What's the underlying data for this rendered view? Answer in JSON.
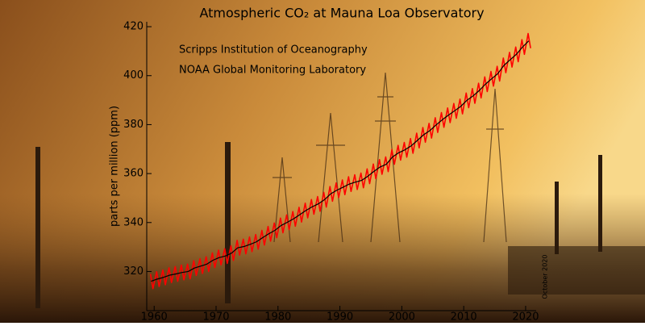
{
  "chart_data": {
    "type": "line",
    "title": "Atmospheric CO₂ at Mauna Loa Observatory",
    "annotations": [
      "Scripps Institution of Oceanography",
      "NOAA Global Monitoring Laboratory",
      "October 2020"
    ],
    "y_label": "parts per million (ppm)",
    "xlim": [
      1958.8,
      2021.7
    ],
    "ylim": [
      304,
      422
    ],
    "xticks": [
      1960,
      1970,
      1980,
      1990,
      2000,
      2010,
      2020
    ],
    "yticks": [
      320,
      340,
      360,
      380,
      400,
      420
    ],
    "series": [
      {
        "color": "#ff0000",
        "x": [
          1959.4,
          1959.8,
          1960.4,
          1960.8,
          1961.4,
          1961.8,
          1962.4,
          1962.8,
          1963.4,
          1963.8,
          1964.4,
          1964.8,
          1965.4,
          1965.8,
          1966.4,
          1966.8,
          1967.4,
          1967.8,
          1968.4,
          1968.8,
          1969.4,
          1969.8,
          1970.4,
          1970.8,
          1971.4,
          1971.8,
          1972.4,
          1972.8,
          1973.4,
          1973.8,
          1974.4,
          1974.8,
          1975.4,
          1975.8,
          1976.4,
          1976.8,
          1977.4,
          1977.8,
          1978.4,
          1978.8,
          1979.4,
          1979.8,
          1980.4,
          1980.8,
          1981.4,
          1981.8,
          1982.4,
          1982.8,
          1983.4,
          1983.8,
          1984.4,
          1984.8,
          1985.4,
          1985.8,
          1986.4,
          1986.8,
          1987.4,
          1987.8,
          1988.4,
          1988.8,
          1989.4,
          1989.8,
          1990.4,
          1990.8,
          1991.4,
          1991.8,
          1992.4,
          1992.8,
          1993.4,
          1993.8,
          1994.4,
          1994.8,
          1995.4,
          1995.8,
          1996.4,
          1996.8,
          1997.4,
          1997.8,
          1998.4,
          1998.8,
          1999.4,
          1999.8,
          2000.4,
          2000.8,
          2001.4,
          2001.8,
          2002.4,
          2002.8,
          2003.4,
          2003.8,
          2004.4,
          2004.8,
          2005.4,
          2005.8,
          2006.4,
          2006.8,
          2007.4,
          2007.8,
          2008.4,
          2008.8,
          2009.4,
          2009.8,
          2010.4,
          2010.8,
          2011.4,
          2011.8,
          2012.4,
          2012.8,
          2013.4,
          2013.8,
          2014.4,
          2014.8,
          2015.4,
          2015.8,
          2016.4,
          2016.8,
          2017.4,
          2017.8,
          2018.4,
          2018.8,
          2019.4,
          2019.8,
          2020.4,
          2020.8
        ],
        "values": [
          319.0,
          313.0,
          319.9,
          313.9,
          320.6,
          314.6,
          321.5,
          315.5,
          322.0,
          316.0,
          322.6,
          316.6,
          323.0,
          317.0,
          324.4,
          318.4,
          325.2,
          319.2,
          326.0,
          320.0,
          327.6,
          321.6,
          328.7,
          322.7,
          329.3,
          323.3,
          330.5,
          324.5,
          332.7,
          326.7,
          333.2,
          327.2,
          334.1,
          328.1,
          335.1,
          329.1,
          336.8,
          330.8,
          338.4,
          332.4,
          339.8,
          333.8,
          341.8,
          335.8,
          343.1,
          337.1,
          344.5,
          338.5,
          346.2,
          340.2,
          347.9,
          341.9,
          349.4,
          343.4,
          350.6,
          344.6,
          352.3,
          346.3,
          354.7,
          348.7,
          356.2,
          350.2,
          357.4,
          351.4,
          358.7,
          352.7,
          359.5,
          353.5,
          360.2,
          354.2,
          361.9,
          355.9,
          363.9,
          357.9,
          365.7,
          359.7,
          366.8,
          360.8,
          369.8,
          363.8,
          371.5,
          365.5,
          372.7,
          366.7,
          374.3,
          368.3,
          376.5,
          370.5,
          378.8,
          372.8,
          380.5,
          374.5,
          382.8,
          376.8,
          384.9,
          378.9,
          386.8,
          380.8,
          388.6,
          382.6,
          390.4,
          384.4,
          392.9,
          386.9,
          394.7,
          388.7,
          396.9,
          390.9,
          399.5,
          393.5,
          401.7,
          395.7,
          403.8,
          397.8,
          407.2,
          401.2,
          409.5,
          403.5,
          411.7,
          405.7,
          414.7,
          408.7,
          417.2,
          411.2
        ]
      },
      {
        "color": "#000000",
        "x": [
          1959.5,
          1960.5,
          1961.5,
          1962.5,
          1963.5,
          1964.5,
          1965.5,
          1966.5,
          1967.5,
          1968.5,
          1969.5,
          1970.5,
          1971.5,
          1972.5,
          1973.5,
          1974.5,
          1975.5,
          1976.5,
          1977.5,
          1978.5,
          1979.5,
          1980.5,
          1981.5,
          1982.5,
          1983.5,
          1984.5,
          1985.5,
          1986.5,
          1987.5,
          1988.5,
          1989.5,
          1990.5,
          1991.5,
          1992.5,
          1993.5,
          1994.5,
          1995.5,
          1996.5,
          1997.5,
          1998.5,
          1999.5,
          2000.5,
          2001.5,
          2002.5,
          2003.5,
          2004.5,
          2005.5,
          2006.5,
          2007.5,
          2008.5,
          2009.5,
          2010.5,
          2011.5,
          2012.5,
          2013.5,
          2014.5,
          2015.5,
          2016.5,
          2017.5,
          2018.5,
          2019.5,
          2020.5
        ],
        "values": [
          316.0,
          316.9,
          317.6,
          318.5,
          319.0,
          319.6,
          320.0,
          321.4,
          322.2,
          323.0,
          324.6,
          325.7,
          326.3,
          327.5,
          329.7,
          330.2,
          331.1,
          332.1,
          333.8,
          335.4,
          336.8,
          338.8,
          340.1,
          341.5,
          343.2,
          344.9,
          346.4,
          347.6,
          349.3,
          351.7,
          353.2,
          354.4,
          355.7,
          356.5,
          357.2,
          358.9,
          360.9,
          362.7,
          363.8,
          366.8,
          368.5,
          369.7,
          371.3,
          373.5,
          375.8,
          377.5,
          379.8,
          381.9,
          383.8,
          385.6,
          387.4,
          389.9,
          391.7,
          393.9,
          396.5,
          398.7,
          400.8,
          404.2,
          406.5,
          408.7,
          411.7,
          414.2
        ]
      }
    ]
  }
}
